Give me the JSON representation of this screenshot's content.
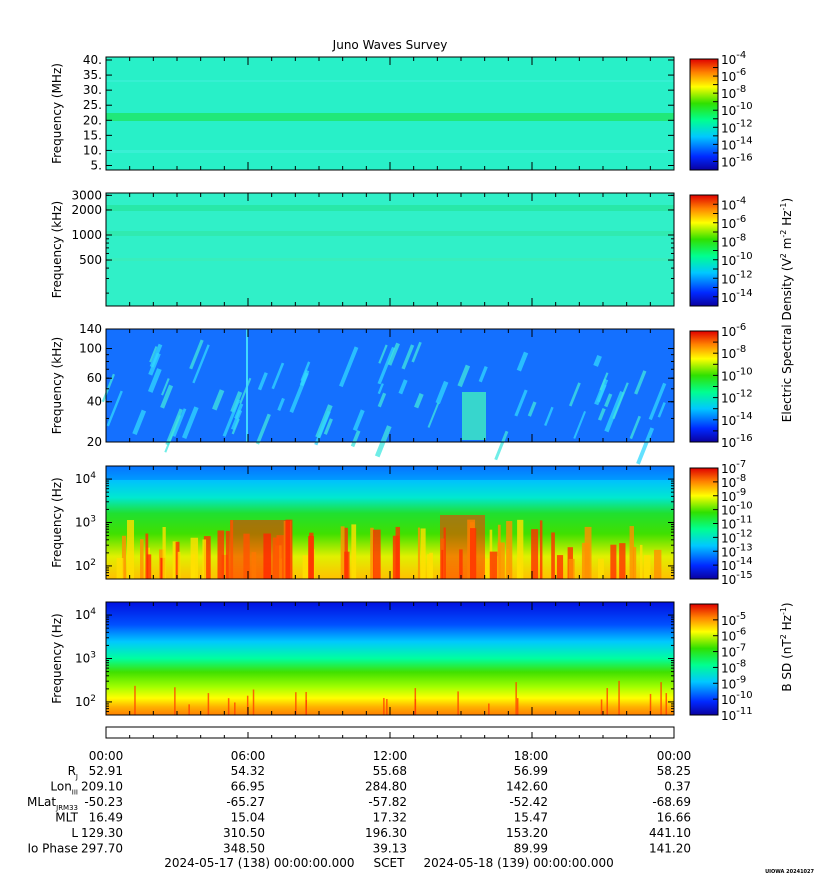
{
  "title": "Juno Waves Survey",
  "stamp": "UIOWA 20241027",
  "panels": [
    {
      "id": "p1",
      "ylabel": "Frequency (MHz)",
      "scale": "linear",
      "ymin": 3.5,
      "ymax": 41,
      "ticks": [
        "40.",
        "35.",
        "30.",
        "25.",
        "20.",
        "15.",
        "10.",
        "5."
      ],
      "tickvals": [
        40,
        35,
        30,
        25,
        20,
        15,
        10,
        5
      ],
      "cbar": {
        "labels": [
          "-4",
          "-6",
          "-8",
          "-10",
          "-12",
          "-14",
          "-16"
        ],
        "expmin": -17,
        "expmax": -4
      }
    },
    {
      "id": "p2",
      "ylabel": "Frequency (kHz)",
      "scale": "log",
      "ymin": 140,
      "ymax": 3200,
      "ticks": [
        "3000",
        "2000",
        "1000",
        "500"
      ],
      "tickvals": [
        3000,
        2000,
        1000,
        500
      ],
      "cbar": {
        "labels": [
          "-4",
          "-6",
          "-8",
          "-10",
          "-12",
          "-14"
        ],
        "expmin": -15,
        "expmax": -3
      }
    },
    {
      "id": "p3",
      "ylabel": "Frequency (kHz)",
      "scale": "log",
      "ymin": 20,
      "ymax": 140,
      "ticks": [
        "140",
        "100",
        "60",
        "40",
        "20"
      ],
      "tickvals": [
        140,
        100,
        60,
        40,
        20
      ],
      "cbar": {
        "labels": [
          "-6",
          "-8",
          "-10",
          "-12",
          "-14",
          "-16"
        ],
        "expmin": -16,
        "expmax": -6
      }
    },
    {
      "id": "p4",
      "ylabel": "Frequency (Hz)",
      "scale": "log",
      "ymin": 50,
      "ymax": 20000,
      "ticks": [
        "10",
        "10",
        "10"
      ],
      "tickexp": [
        "4",
        "3",
        "2"
      ],
      "tickvals": [
        10000,
        1000,
        100
      ],
      "cbar": {
        "labels": [
          "-7",
          "-8",
          "-9",
          "-10",
          "-11",
          "-12",
          "-13",
          "-14",
          "-15"
        ],
        "expmin": -15,
        "expmax": -7
      }
    },
    {
      "id": "p5",
      "ylabel": "Frequency (Hz)",
      "scale": "log",
      "ymin": 50,
      "ymax": 20000,
      "ticks": [
        "10",
        "10",
        "10"
      ],
      "tickexp": [
        "4",
        "3",
        "2"
      ],
      "tickvals": [
        10000,
        1000,
        100
      ],
      "cbar": {
        "labels": [
          "-5",
          "-6",
          "-7",
          "-8",
          "-9",
          "-10",
          "-11"
        ],
        "expmin": -11,
        "expmax": -4
      }
    }
  ],
  "cbar_base": "10",
  "cbar_e_title": "Electric Spectral Density (V",
  "cbar_b_title": "B SD (nT",
  "times": [
    "00:00",
    "06:00",
    "12:00",
    "18:00",
    "00:00"
  ],
  "ephem": [
    {
      "label": "R",
      "sub": "J",
      "values": [
        "52.91",
        "54.32",
        "55.68",
        "56.99",
        "58.25"
      ]
    },
    {
      "label": "Lon",
      "sub": "III",
      "values": [
        "209.10",
        "66.95",
        "284.80",
        "142.60",
        "0.37"
      ]
    },
    {
      "label": "MLat",
      "sub": "JRM33",
      "values": [
        "-50.23",
        "-65.27",
        "-57.82",
        "-52.42",
        "-68.69"
      ]
    },
    {
      "label": "MLT",
      "sub": "",
      "values": [
        "16.49",
        "15.04",
        "17.32",
        "15.47",
        "16.66"
      ]
    },
    {
      "label": "L",
      "sub": "",
      "values": [
        "129.30",
        "310.50",
        "196.30",
        "153.20",
        "441.10"
      ]
    },
    {
      "label": "Io Phase",
      "sub": "",
      "values": [
        "297.70",
        "348.50",
        "39.13",
        "89.99",
        "141.20"
      ]
    }
  ],
  "footer": "2024-05-17 (138) 00:00:00.000     SCET     2024-05-18 (139) 00:00:00.000",
  "chart_data": {
    "type": "heatmap",
    "title": "Juno Waves Survey",
    "x_range": [
      "2024-05-17T00:00",
      "2024-05-18T00:00"
    ],
    "panels": [
      {
        "ylabel": "Frequency (MHz)",
        "ylim": [
          3.5,
          41
        ],
        "zlim_exp": [
          -17,
          -4
        ],
        "colorbar": "Electric Spectral Density"
      },
      {
        "ylabel": "Frequency (kHz)",
        "ylim": [
          140,
          3200
        ],
        "yscale": "log",
        "zlim_exp": [
          -15,
          -3
        ],
        "colorbar": "Electric Spectral Density"
      },
      {
        "ylabel": "Frequency (kHz)",
        "ylim": [
          20,
          140
        ],
        "yscale": "log",
        "zlim_exp": [
          -16,
          -6
        ],
        "colorbar": "Electric Spectral Density"
      },
      {
        "ylabel": "Frequency (Hz)",
        "ylim": [
          50,
          20000
        ],
        "yscale": "log",
        "zlim_exp": [
          -15,
          -7
        ],
        "colorbar": "Electric Spectral Density"
      },
      {
        "ylabel": "Frequency (Hz)",
        "ylim": [
          50,
          20000
        ],
        "yscale": "log",
        "zlim_exp": [
          -11,
          -4
        ],
        "colorbar": "B SD"
      }
    ]
  }
}
